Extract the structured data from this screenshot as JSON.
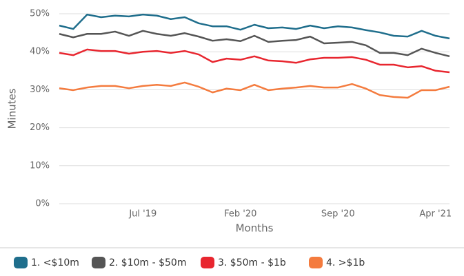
{
  "chart_data": {
    "type": "line",
    "categories": [
      null,
      null,
      null,
      null,
      null,
      null,
      "Jul '19",
      null,
      null,
      null,
      null,
      null,
      null,
      "Feb '20",
      null,
      null,
      null,
      null,
      null,
      null,
      "Sep '20",
      null,
      null,
      null,
      null,
      null,
      null,
      "Apr '21",
      null
    ],
    "xlabel": "Months",
    "ylabel": "Minutes",
    "ylim": [
      0,
      50
    ],
    "yticks": [
      {
        "value": 0,
        "label": "0%"
      },
      {
        "value": 10,
        "label": "10%"
      },
      {
        "value": 20,
        "label": "20%"
      },
      {
        "value": 30,
        "label": "30%"
      },
      {
        "value": 40,
        "label": "40%"
      },
      {
        "value": 50,
        "label": "50%"
      }
    ],
    "grid": true,
    "legend": "bottom",
    "series": [
      {
        "name": "1. <$10m",
        "color": "#1f6e8c",
        "values": [
          46.9,
          46,
          49.8,
          49.1,
          49.5,
          49.3,
          49.8,
          49.5,
          48.6,
          49.1,
          47.5,
          46.7,
          46.7,
          45.8,
          47.1,
          46.2,
          46.4,
          46,
          46.9,
          46.2,
          46.7,
          46.4,
          45.7,
          45.1,
          44.2,
          44,
          45.5,
          44.2,
          43.5
        ]
      },
      {
        "name": "2. $10m - $50m",
        "color": "#555555",
        "values": [
          44.7,
          43.8,
          44.7,
          44.7,
          45.3,
          44.2,
          45.5,
          44.7,
          44.2,
          44.9,
          44,
          42.9,
          43.3,
          42.8,
          44.2,
          42.6,
          42.9,
          43.1,
          44,
          42.2,
          42.4,
          42.6,
          41.7,
          39.7,
          39.7,
          39.1,
          40.8,
          39.7,
          38.8
        ]
      },
      {
        "name": "3. $50m - $1b",
        "color": "#e8262f",
        "values": [
          39.7,
          39.1,
          40.6,
          40.2,
          40.2,
          39.5,
          40,
          40.2,
          39.7,
          40.2,
          39.3,
          37.3,
          38.2,
          37.9,
          38.8,
          37.7,
          37.5,
          37.1,
          38,
          38.4,
          38.4,
          38.6,
          37.9,
          36.6,
          36.6,
          35.9,
          36.2,
          35,
          34.6
        ]
      },
      {
        "name": "4. >$1b",
        "color": "#f47b3e",
        "values": [
          30.4,
          29.9,
          30.6,
          31,
          31,
          30.4,
          31,
          31.3,
          31,
          31.9,
          30.8,
          29.3,
          30.3,
          29.9,
          31.3,
          29.9,
          30.3,
          30.6,
          31,
          30.6,
          30.6,
          31.5,
          30.3,
          28.6,
          28.1,
          27.9,
          29.9,
          29.9,
          30.8
        ]
      }
    ]
  }
}
